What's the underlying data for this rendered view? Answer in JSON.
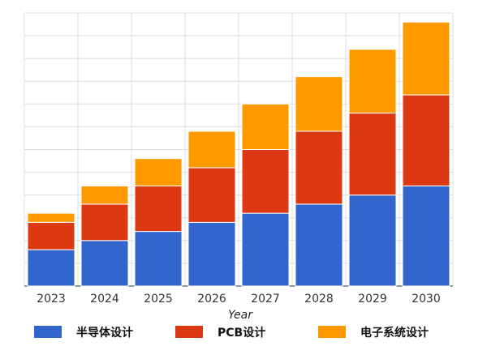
{
  "chart_data": {
    "type": "bar",
    "stacked": true,
    "xlabel": "Year",
    "ylabel": "",
    "categories": [
      "2023",
      "2024",
      "2025",
      "2026",
      "2027",
      "2028",
      "2029",
      "2030"
    ],
    "ylim": [
      0,
      12
    ],
    "grid": true,
    "legend_position": "bottom",
    "series": [
      {
        "name": "半导体设计",
        "color": "#3366cc",
        "values": [
          1.6,
          2.0,
          2.4,
          2.8,
          3.2,
          3.6,
          4.0,
          4.4
        ]
      },
      {
        "name": "PCB设计",
        "color": "#dc3912",
        "values": [
          1.2,
          1.6,
          2.0,
          2.4,
          2.8,
          3.2,
          3.6,
          4.0
        ]
      },
      {
        "name": "电子系统设计",
        "color": "#ff9900",
        "values": [
          0.4,
          0.8,
          1.2,
          1.6,
          2.0,
          2.4,
          2.8,
          3.2
        ]
      }
    ]
  }
}
